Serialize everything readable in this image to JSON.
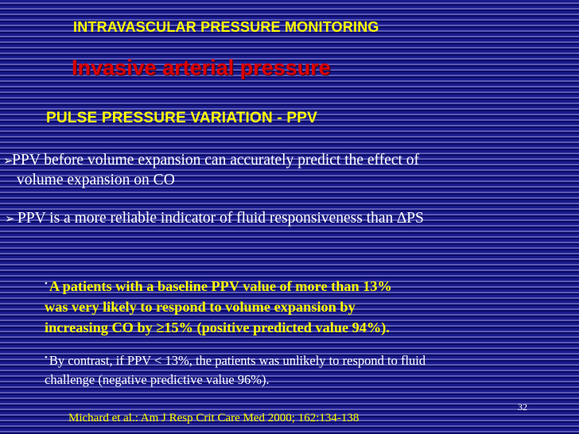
{
  "slide": {
    "title": "INTRAVASCULAR PRESSURE MONITORING",
    "subtitle": "Invasive arterial pressure",
    "section_title": "PULSE PRESSURE VARIATION -  PPV",
    "bullets": [
      {
        "line1": "PPV before volume expansion can accurately predict the effect of",
        "line2": "volume expansion on CO"
      },
      {
        "text": " PPV is a more reliable indicator of fluid responsiveness than ∆PS"
      }
    ],
    "findings": [
      {
        "marker": "•",
        "lines": [
          "A patients  with a baseline PPV value of more than 13%",
          "was very likely to respond to volume expansion by",
          "increasing CO by ≥15% (positive predicted value 94%)."
        ]
      },
      {
        "marker": "•",
        "lines": [
          "By contrast, if PPV < 13%, the patients was unlikely to respond to fluid",
          "challenge (negative predictive value 96%)."
        ]
      }
    ],
    "slide_number": "32",
    "citation": "Michard et al.: Am J Resp Crit Care Med 2000; 162:134-138"
  },
  "icons": {
    "bullet_arrow": "➢"
  },
  "colors": {
    "background": "#0b0b6e",
    "stripe": "#5a5ab6",
    "title": "#ffff00",
    "subtitle": "#dd0000",
    "body_text": "#ffffff",
    "highlight": "#ffff00"
  }
}
